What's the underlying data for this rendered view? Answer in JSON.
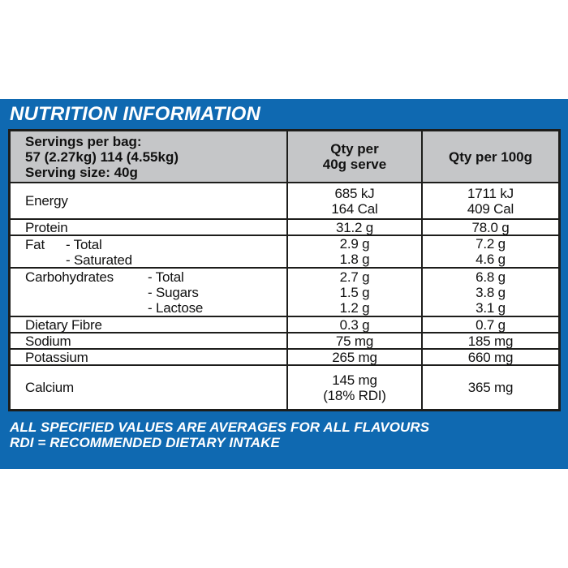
{
  "panel": {
    "title": "NUTRITION INFORMATION",
    "footer_lines": [
      "ALL SPECIFIED VALUES ARE AVERAGES FOR ALL FLAVOURS",
      "RDI = RECOMMENDED DIETARY INTAKE"
    ],
    "colors": {
      "panel_blue": "#0f69b1",
      "header_gray": "#c5c6c8",
      "border_black": "#1d1d1b",
      "table_bg": "#ffffff",
      "title_text": "#ffffff",
      "body_text": "#111111"
    }
  },
  "table": {
    "header": {
      "servings_lines": [
        "Servings per bag:",
        "57 (2.27kg) 114 (4.55kg)",
        "Serving size: 40g"
      ],
      "qty40_lines": [
        "Qty per",
        "40g serve"
      ],
      "qty100": "Qty per 100g"
    },
    "rows": [
      {
        "name": "Energy",
        "subs": [],
        "qty40": [
          "685 kJ",
          "164 Cal"
        ],
        "qty100": [
          "1711 kJ",
          "409 Cal"
        ]
      },
      {
        "name": "Protein",
        "subs": [],
        "qty40": [
          "31.2 g"
        ],
        "qty100": [
          "78.0 g"
        ]
      },
      {
        "name": "Fat",
        "subs": [
          "- Total",
          "- Saturated"
        ],
        "qty40": [
          "2.9 g",
          "1.8 g"
        ],
        "qty100": [
          "7.2 g",
          "4.6 g"
        ]
      },
      {
        "name": "Carbohydrates",
        "subs": [
          "- Total",
          "- Sugars",
          "- Lactose"
        ],
        "qty40": [
          "2.7 g",
          "1.5 g",
          "1.2 g"
        ],
        "qty100": [
          "6.8 g",
          "3.8 g",
          "3.1 g"
        ]
      },
      {
        "name": "Dietary Fibre",
        "subs": [],
        "qty40": [
          "0.3 g"
        ],
        "qty100": [
          "0.7 g"
        ]
      },
      {
        "name": "Sodium",
        "subs": [],
        "qty40": [
          "75 mg"
        ],
        "qty100": [
          "185 mg"
        ]
      },
      {
        "name": "Potassium",
        "subs": [],
        "qty40": [
          "265 mg"
        ],
        "qty100": [
          "660 mg"
        ]
      },
      {
        "name": "Calcium",
        "subs": [],
        "qty40": [
          "145 mg",
          "(18% RDI)"
        ],
        "qty100": [
          "365 mg"
        ]
      }
    ]
  },
  "chart_data": {
    "type": "table",
    "title": "NUTRITION INFORMATION",
    "columns": [
      "Nutrient",
      "Qty per 40g serve",
      "Qty per 100g"
    ],
    "rows": [
      [
        "Energy",
        "685 kJ / 164 Cal",
        "1711 kJ / 409 Cal"
      ],
      [
        "Protein",
        "31.2 g",
        "78.0 g"
      ],
      [
        "Fat - Total",
        "2.9 g",
        "7.2 g"
      ],
      [
        "Fat - Saturated",
        "1.8 g",
        "4.6 g"
      ],
      [
        "Carbohydrates - Total",
        "2.7 g",
        "6.8 g"
      ],
      [
        "Carbohydrates - Sugars",
        "1.5 g",
        "3.8 g"
      ],
      [
        "Carbohydrates - Lactose",
        "1.2 g",
        "3.1 g"
      ],
      [
        "Dietary Fibre",
        "0.3 g",
        "0.7 g"
      ],
      [
        "Sodium",
        "75 mg",
        "185 mg"
      ],
      [
        "Potassium",
        "265 mg",
        "660 mg"
      ],
      [
        "Calcium",
        "145 mg (18% RDI)",
        "365 mg"
      ]
    ]
  }
}
